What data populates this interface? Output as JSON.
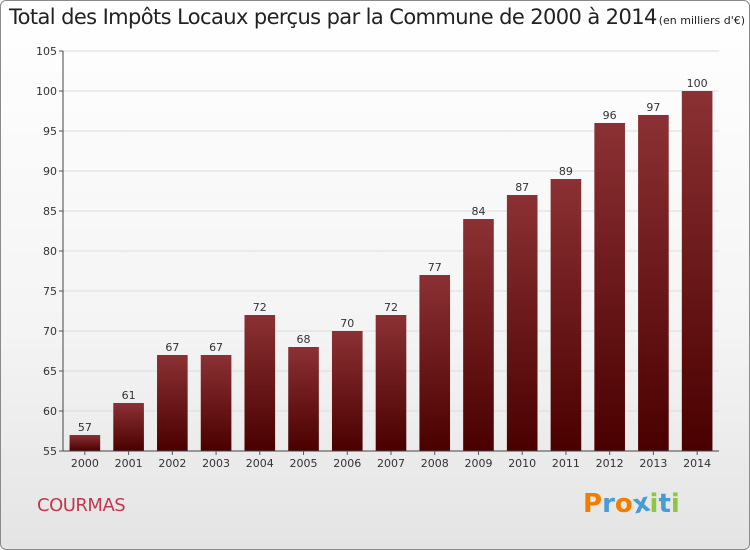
{
  "title": "Total des Impôts Locaux perçus par la Commune de 2000 à 2014",
  "subtitle": "(en milliers d'€)",
  "commune": "COURMAS",
  "brand": {
    "letters": [
      "P",
      "r",
      "o",
      "x",
      "i",
      "t",
      "i"
    ],
    "colors": [
      "#f07d00",
      "#4a9bd1",
      "#f07d00",
      "#4a9bd1",
      "#8dc63f",
      "#4a9bd1",
      "#8dc63f"
    ]
  },
  "colors": {
    "bar_top": "#8b3134",
    "bar_bottom": "#4a0000",
    "commune": "#c0394b",
    "grid": "#dcdcdc"
  },
  "chart_data": {
    "type": "bar",
    "title": "Total des Impôts Locaux perçus par la Commune de 2000 à 2014",
    "xlabel": "",
    "ylabel": "",
    "categories": [
      "2000",
      "2001",
      "2002",
      "2003",
      "2004",
      "2005",
      "2006",
      "2007",
      "2008",
      "2009",
      "2010",
      "2011",
      "2012",
      "2013",
      "2014"
    ],
    "values": [
      57,
      61,
      67,
      67,
      72,
      68,
      70,
      72,
      77,
      84,
      87,
      89,
      96,
      97,
      100
    ],
    "ylim": [
      55,
      105
    ],
    "yticks": [
      55,
      60,
      65,
      70,
      75,
      80,
      85,
      90,
      95,
      100,
      105
    ],
    "grid": true
  }
}
